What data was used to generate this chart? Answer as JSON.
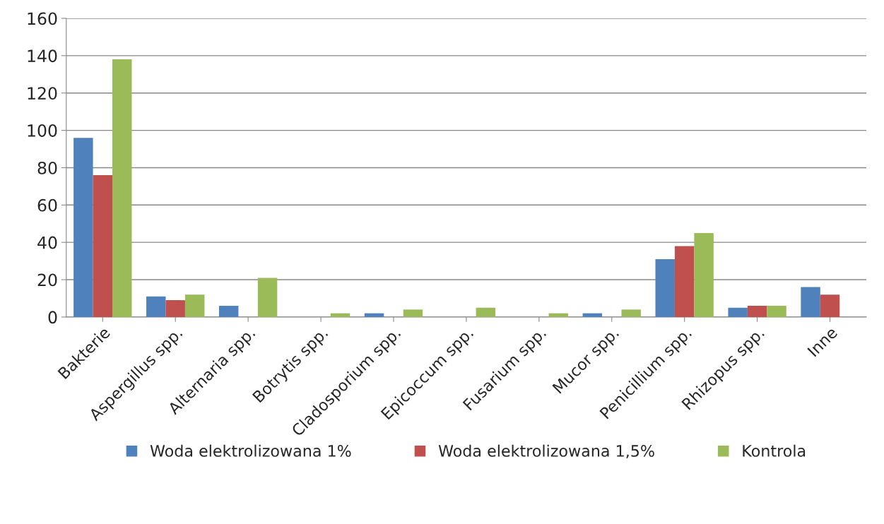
{
  "chart_data": {
    "type": "bar",
    "categories": [
      "Bakterie",
      "Aspergillus spp.",
      "Alternaria spp.",
      "Botrytis spp.",
      "Cladosporium spp.",
      "Epicoccum spp.",
      "Fusarium spp.",
      "Mucor spp.",
      "Penicillium spp.",
      "Rhizopus spp.",
      "Inne"
    ],
    "series": [
      {
        "name": "Woda elektrolizowana 1%",
        "color": "#4f81bd",
        "values": [
          96,
          11,
          6,
          0,
          2,
          0,
          0,
          2,
          31,
          5,
          16
        ]
      },
      {
        "name": "Woda elektrolizowana 1,5%",
        "color": "#c0504d",
        "values": [
          76,
          9,
          0,
          0,
          0,
          0,
          0,
          0,
          38,
          6,
          12
        ]
      },
      {
        "name": "Kontrola",
        "color": "#9bbb59",
        "values": [
          138,
          12,
          21,
          2,
          4,
          5,
          2,
          4,
          45,
          6,
          null
        ]
      }
    ],
    "ylim": [
      0,
      160
    ],
    "yticks": [
      0,
      20,
      40,
      60,
      80,
      100,
      120,
      140,
      160
    ],
    "grid": "y",
    "legend": "bottom"
  }
}
